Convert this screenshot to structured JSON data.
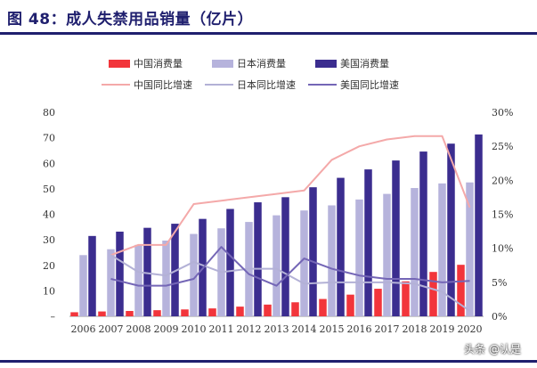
{
  "page": {
    "title": "图 48：成人失禁用品销量（亿片）",
    "watermark": "头条 @认是"
  },
  "colors": {
    "china_bar": "#f2353b",
    "japan_bar": "#b6b3dc",
    "usa_bar": "#3b2d8f",
    "china_line": "#f4a9a9",
    "japan_line": "#b3b1d6",
    "usa_line": "#7466b6"
  },
  "chart_data": {
    "type": "bar",
    "categories": [
      "2006",
      "2007",
      "2008",
      "2009",
      "2010",
      "2011",
      "2012",
      "2013",
      "2014",
      "2015",
      "2016",
      "2017",
      "2018",
      "2019",
      "2020"
    ],
    "series": [
      {
        "name": "中国消费量",
        "kind": "bar",
        "axis": "left",
        "values": [
          1.6,
          1.9,
          2.1,
          2.4,
          2.7,
          3.1,
          3.8,
          4.6,
          5.5,
          6.8,
          8.5,
          10.8,
          13.7,
          17.4,
          20.2
        ]
      },
      {
        "name": "日本消费量",
        "kind": "bar",
        "axis": "left",
        "values": [
          24.0,
          26.3,
          28.0,
          29.7,
          32.3,
          34.5,
          37.0,
          39.6,
          41.5,
          43.5,
          45.8,
          48.0,
          50.3,
          52.1,
          52.5
        ]
      },
      {
        "name": "美国消费量",
        "kind": "bar",
        "axis": "left",
        "values": [
          31.5,
          33.2,
          34.7,
          36.3,
          38.2,
          42.1,
          44.7,
          46.7,
          50.6,
          54.3,
          57.6,
          61.1,
          64.6,
          67.7,
          71.3
        ]
      },
      {
        "name": "中国同比增速",
        "kind": "line",
        "axis": "right",
        "values": [
          null,
          9.0,
          10.5,
          10.5,
          16.5,
          17.0,
          17.5,
          18.0,
          18.5,
          23.0,
          25.0,
          26.0,
          26.5,
          26.5,
          16.0
        ]
      },
      {
        "name": "日本同比增速",
        "kind": "line",
        "axis": "right",
        "values": [
          null,
          9.0,
          6.5,
          6.0,
          8.0,
          6.5,
          7.0,
          7.0,
          4.8,
          5.0,
          5.0,
          5.0,
          4.8,
          3.6,
          0.8
        ]
      },
      {
        "name": "美国同比增速",
        "kind": "line",
        "axis": "right",
        "values": [
          null,
          5.5,
          4.5,
          4.5,
          5.5,
          10.2,
          6.2,
          4.5,
          8.5,
          7.0,
          6.0,
          5.5,
          5.5,
          5.0,
          5.2
        ]
      }
    ],
    "ylim_left": [
      0,
      80
    ],
    "yticks_left": [
      "–",
      "10",
      "20",
      "30",
      "40",
      "50",
      "60",
      "70",
      "80"
    ],
    "ylim_right": [
      0,
      30
    ],
    "yticks_right": [
      "0%",
      "5%",
      "10%",
      "15%",
      "20%",
      "25%",
      "30%"
    ],
    "grid": false,
    "legend": "top-center"
  }
}
